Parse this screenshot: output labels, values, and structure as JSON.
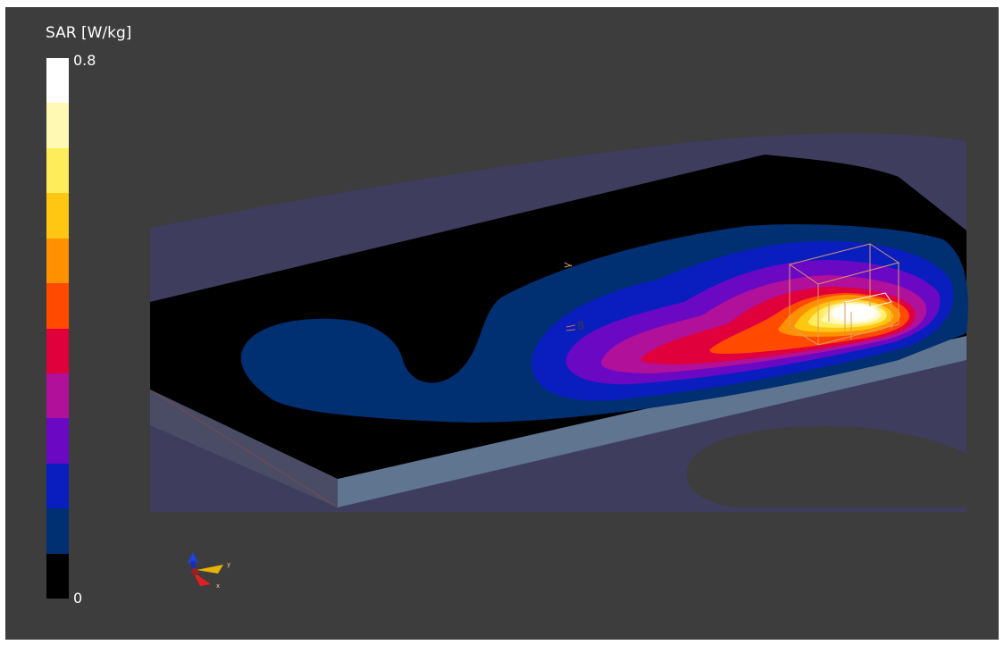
{
  "colorbar": {
    "title": "SAR [W/kg]",
    "max_label": "0.8",
    "min_label": "0",
    "levels_top_to_bottom": [
      "#ffffff",
      "#fff9b4",
      "#ffec5a",
      "#ffc612",
      "#ff9100",
      "#ff4a00",
      "#e0003c",
      "#b0109a",
      "#6a08c4",
      "#0a1ec0",
      "#003072",
      "#000000"
    ]
  },
  "scene": {
    "probe_label": "B",
    "triad_labels": [
      "y",
      "x"
    ]
  }
}
